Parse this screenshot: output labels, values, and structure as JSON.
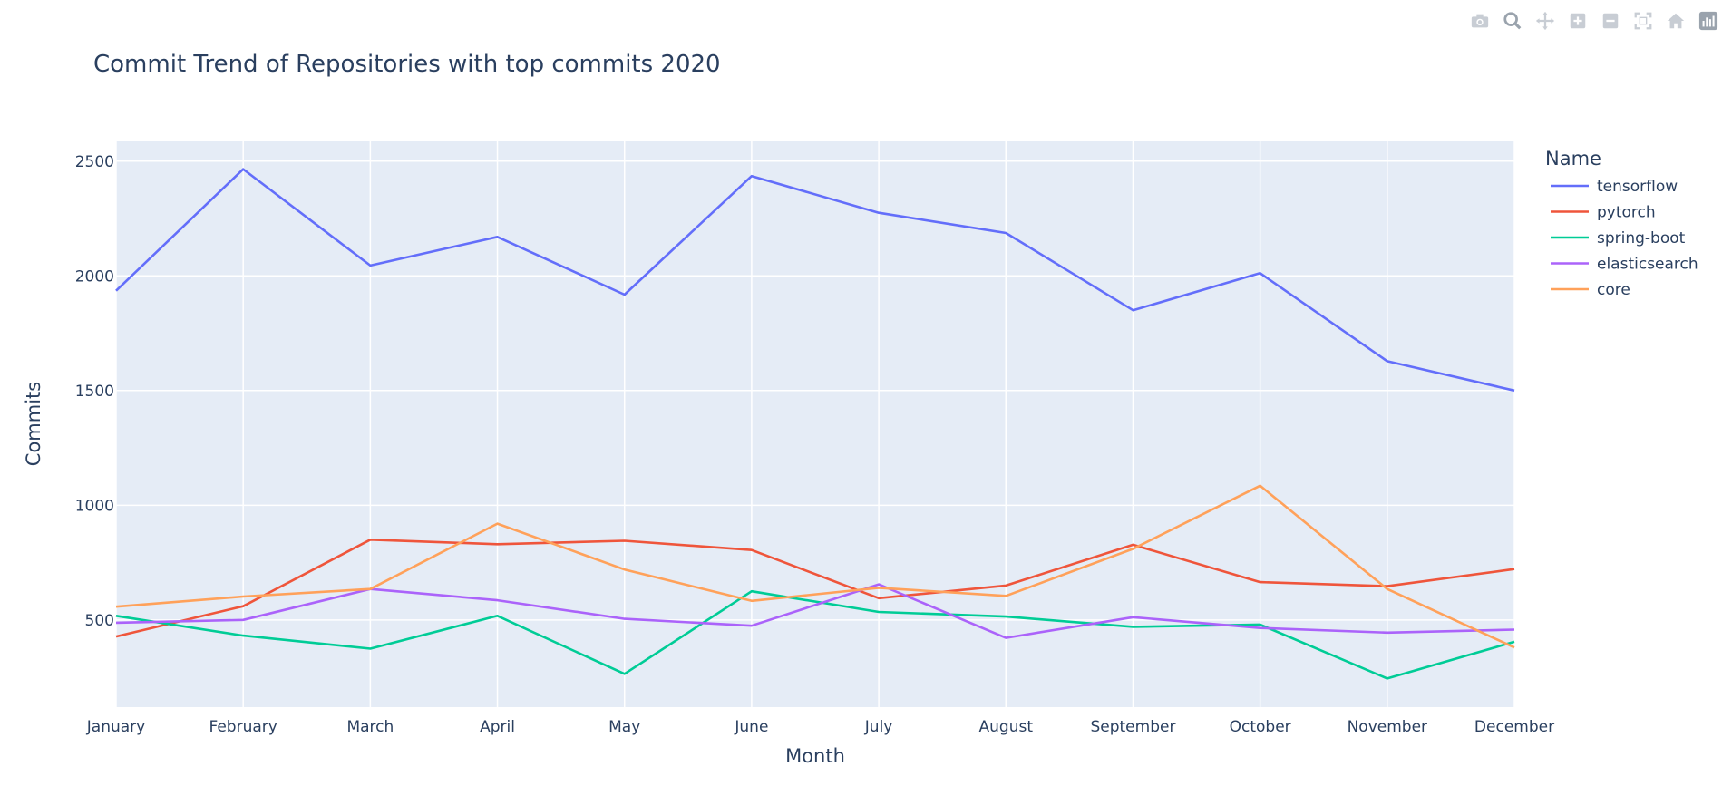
{
  "chart_data": {
    "type": "line",
    "title": "Commit Trend of Repositories with top commits 2020",
    "xlabel": "Month",
    "ylabel": "Commits",
    "legend_title": "Name",
    "legend_position": "top-right",
    "grid": true,
    "ylim": [
      120,
      2590
    ],
    "yticks": [
      500,
      1000,
      1500,
      2000,
      2500
    ],
    "categories": [
      "January",
      "February",
      "March",
      "April",
      "May",
      "June",
      "July",
      "August",
      "September",
      "October",
      "November",
      "December"
    ],
    "series": [
      {
        "name": "tensorflow",
        "color": "#636efa",
        "values": [
          1935,
          2465,
          2045,
          2170,
          1918,
          2435,
          2275,
          2187,
          1850,
          2012,
          1628,
          1500
        ]
      },
      {
        "name": "pytorch",
        "color": "#EF553B",
        "values": [
          428,
          560,
          850,
          830,
          845,
          805,
          595,
          650,
          828,
          665,
          647,
          722
        ]
      },
      {
        "name": "spring-boot",
        "color": "#00cc96",
        "values": [
          518,
          432,
          375,
          518,
          265,
          625,
          535,
          515,
          470,
          480,
          245,
          405
        ]
      },
      {
        "name": "elasticsearch",
        "color": "#ab63fa",
        "values": [
          488,
          500,
          635,
          586,
          505,
          475,
          655,
          422,
          512,
          465,
          445,
          458
        ]
      },
      {
        "name": "core",
        "color": "#FFA15A",
        "values": [
          558,
          602,
          635,
          920,
          720,
          583,
          640,
          605,
          810,
          1085,
          635,
          380
        ]
      }
    ]
  },
  "modebar": {
    "icons": [
      "camera-icon",
      "zoom-icon",
      "pan-icon",
      "zoom-in-icon",
      "zoom-out-icon",
      "autoscale-icon",
      "home-icon",
      "plotly-logo-icon"
    ]
  }
}
